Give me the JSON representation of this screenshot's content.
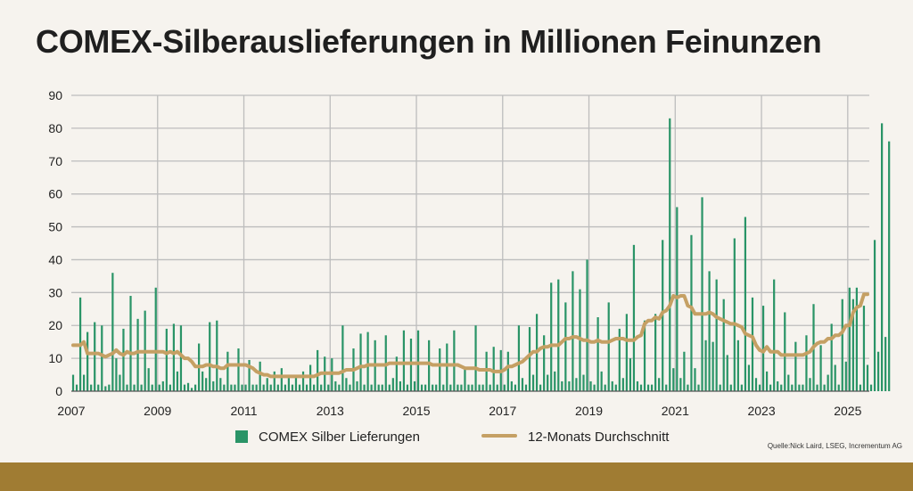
{
  "title": "COMEX-Silberauslieferungen in Millionen Feinunzen",
  "source": "Quelle:Nick Laird, LSEG, Incrementum AG",
  "colors": {
    "bars": "#2a9467",
    "line": "#c5a064",
    "grid": "#bdbdbd",
    "background": "#f6f3ee",
    "footer": "#a07c33"
  },
  "chart_data": {
    "type": "bar",
    "title": "COMEX-Silberauslieferungen in Millionen Feinunzen",
    "xlabel": "",
    "ylabel": "",
    "ylim": [
      0,
      90
    ],
    "yticks": [
      "0",
      "10",
      "20",
      "30",
      "40",
      "50",
      "60",
      "70",
      "80",
      "90"
    ],
    "xticks": [
      "2007",
      "2009",
      "2011",
      "2013",
      "2015",
      "2017",
      "2019",
      "2021",
      "2023",
      "2025"
    ],
    "xlim": [
      2007.0,
      2025.5
    ],
    "grid": true,
    "legend_position": "bottom",
    "x_start": 2007.0,
    "x_step_years": 0.0833333,
    "series": [
      {
        "name": "COMEX Silber Lieferungen",
        "type": "bar",
        "values": [
          5,
          2,
          28.5,
          5,
          18,
          2,
          21,
          2,
          20,
          1.5,
          2,
          36,
          10,
          5,
          19,
          2,
          29,
          2,
          22,
          2,
          24.5,
          7,
          2,
          31.5,
          2,
          3,
          19,
          2,
          20.5,
          6,
          20,
          2,
          2.5,
          1,
          2,
          14.5,
          6,
          4,
          21,
          3,
          21.5,
          4,
          2,
          12,
          2,
          2,
          13,
          2,
          2,
          9.5,
          2,
          2,
          9,
          2,
          4,
          2,
          6,
          2,
          7,
          2,
          4,
          2,
          5,
          2,
          6,
          2,
          8,
          2,
          12.5,
          2,
          10.5,
          2,
          10,
          3,
          2,
          20,
          4,
          2,
          13,
          3,
          17.5,
          2,
          18,
          2,
          15.5,
          2,
          2,
          17,
          2,
          4,
          10.5,
          3,
          18.5,
          2,
          16,
          3,
          18.5,
          2,
          2,
          15.5,
          2,
          2,
          13,
          2,
          14.5,
          2,
          18.5,
          2,
          2,
          7,
          2,
          2,
          20,
          2,
          2,
          12,
          2,
          13.5,
          2,
          12.5,
          2,
          12,
          3,
          2,
          20,
          4,
          2,
          19.5,
          5,
          23.5,
          2,
          17,
          5,
          33,
          6,
          34,
          3,
          27,
          3,
          36.5,
          4,
          31,
          5,
          40,
          3,
          2,
          22.5,
          6,
          2,
          27,
          3,
          2,
          19,
          4,
          23.5,
          10,
          44.5,
          3,
          2,
          21.5,
          2,
          2,
          23.5,
          4,
          46,
          2,
          83,
          7,
          56,
          4,
          12,
          2,
          47.5,
          7,
          2,
          59,
          15.5,
          36.5,
          15,
          34,
          2,
          28,
          11,
          2,
          46.5,
          15.5,
          2,
          53,
          8,
          28.5,
          4,
          2,
          26,
          6,
          2,
          34,
          3,
          2,
          24,
          5,
          2,
          15,
          2,
          2,
          17,
          4,
          26.5,
          2,
          14,
          2,
          5,
          20.5,
          8,
          2,
          28,
          9,
          31.5,
          28,
          31.5,
          2,
          26,
          8,
          2,
          46,
          12,
          81.5,
          16.5,
          76
        ]
      },
      {
        "name": "12-Monats Durchschnitt",
        "type": "line",
        "values": [
          14,
          14,
          14,
          15,
          11.5,
          11.5,
          11.5,
          11.5,
          11,
          10.5,
          11,
          11.5,
          12.5,
          11.5,
          11,
          12,
          11.5,
          11.5,
          12,
          12,
          12,
          12,
          12,
          12,
          12,
          12,
          11.5,
          12,
          11.5,
          12,
          11,
          10,
          10,
          9,
          7.5,
          7.5,
          7.5,
          8,
          8,
          7.5,
          7.5,
          7,
          7,
          8,
          8,
          8,
          8,
          8,
          8,
          7.5,
          7,
          6,
          5.5,
          5,
          5,
          4.5,
          4.5,
          4.5,
          4.5,
          4.5,
          4.5,
          4.5,
          4.5,
          4.5,
          4.5,
          4.5,
          4.5,
          4.5,
          5,
          5.5,
          5.5,
          5.5,
          5.5,
          5.5,
          5.5,
          6,
          6.5,
          6.5,
          6.5,
          7,
          7.5,
          7.5,
          8,
          8,
          8,
          8,
          8,
          8,
          8.5,
          8.5,
          8.5,
          8.5,
          8.5,
          8.5,
          8.5,
          8.5,
          8.5,
          8.5,
          8.5,
          8.5,
          8,
          8,
          8,
          8,
          8,
          8,
          8,
          8,
          7.5,
          7,
          7,
          7,
          7,
          6.5,
          6.5,
          6.5,
          6.5,
          6,
          6,
          6,
          6.5,
          7.5,
          7.5,
          8,
          8.5,
          9,
          10,
          11,
          12,
          12,
          13,
          13.5,
          13.5,
          14,
          14,
          14,
          15,
          16,
          16,
          16.5,
          16.5,
          16,
          15.5,
          15.5,
          15,
          15,
          15.5,
          15,
          15,
          15,
          15.5,
          16,
          16,
          16,
          15.5,
          15.5,
          15.5,
          16.5,
          17,
          20.5,
          21.5,
          21.5,
          22.5,
          22,
          24,
          24.5,
          26,
          29,
          28.5,
          29,
          29,
          26,
          25.5,
          23.5,
          23.5,
          23.5,
          23.5,
          24,
          23.5,
          22.5,
          22,
          21.5,
          21,
          20.5,
          20.5,
          20,
          19.5,
          17.5,
          17,
          16.5,
          14,
          12.5,
          12,
          13.5,
          12,
          12,
          12,
          11,
          11,
          11,
          11,
          11,
          11,
          11,
          11.5,
          12,
          13.5,
          14.5,
          15,
          15,
          16,
          16,
          17,
          17,
          18,
          20,
          20,
          24,
          25.5,
          26,
          29.5,
          29.5
        ]
      }
    ]
  },
  "legend": [
    {
      "label": "COMEX Silber Lieferungen"
    },
    {
      "label": "12-Monats Durchschnitt"
    }
  ]
}
